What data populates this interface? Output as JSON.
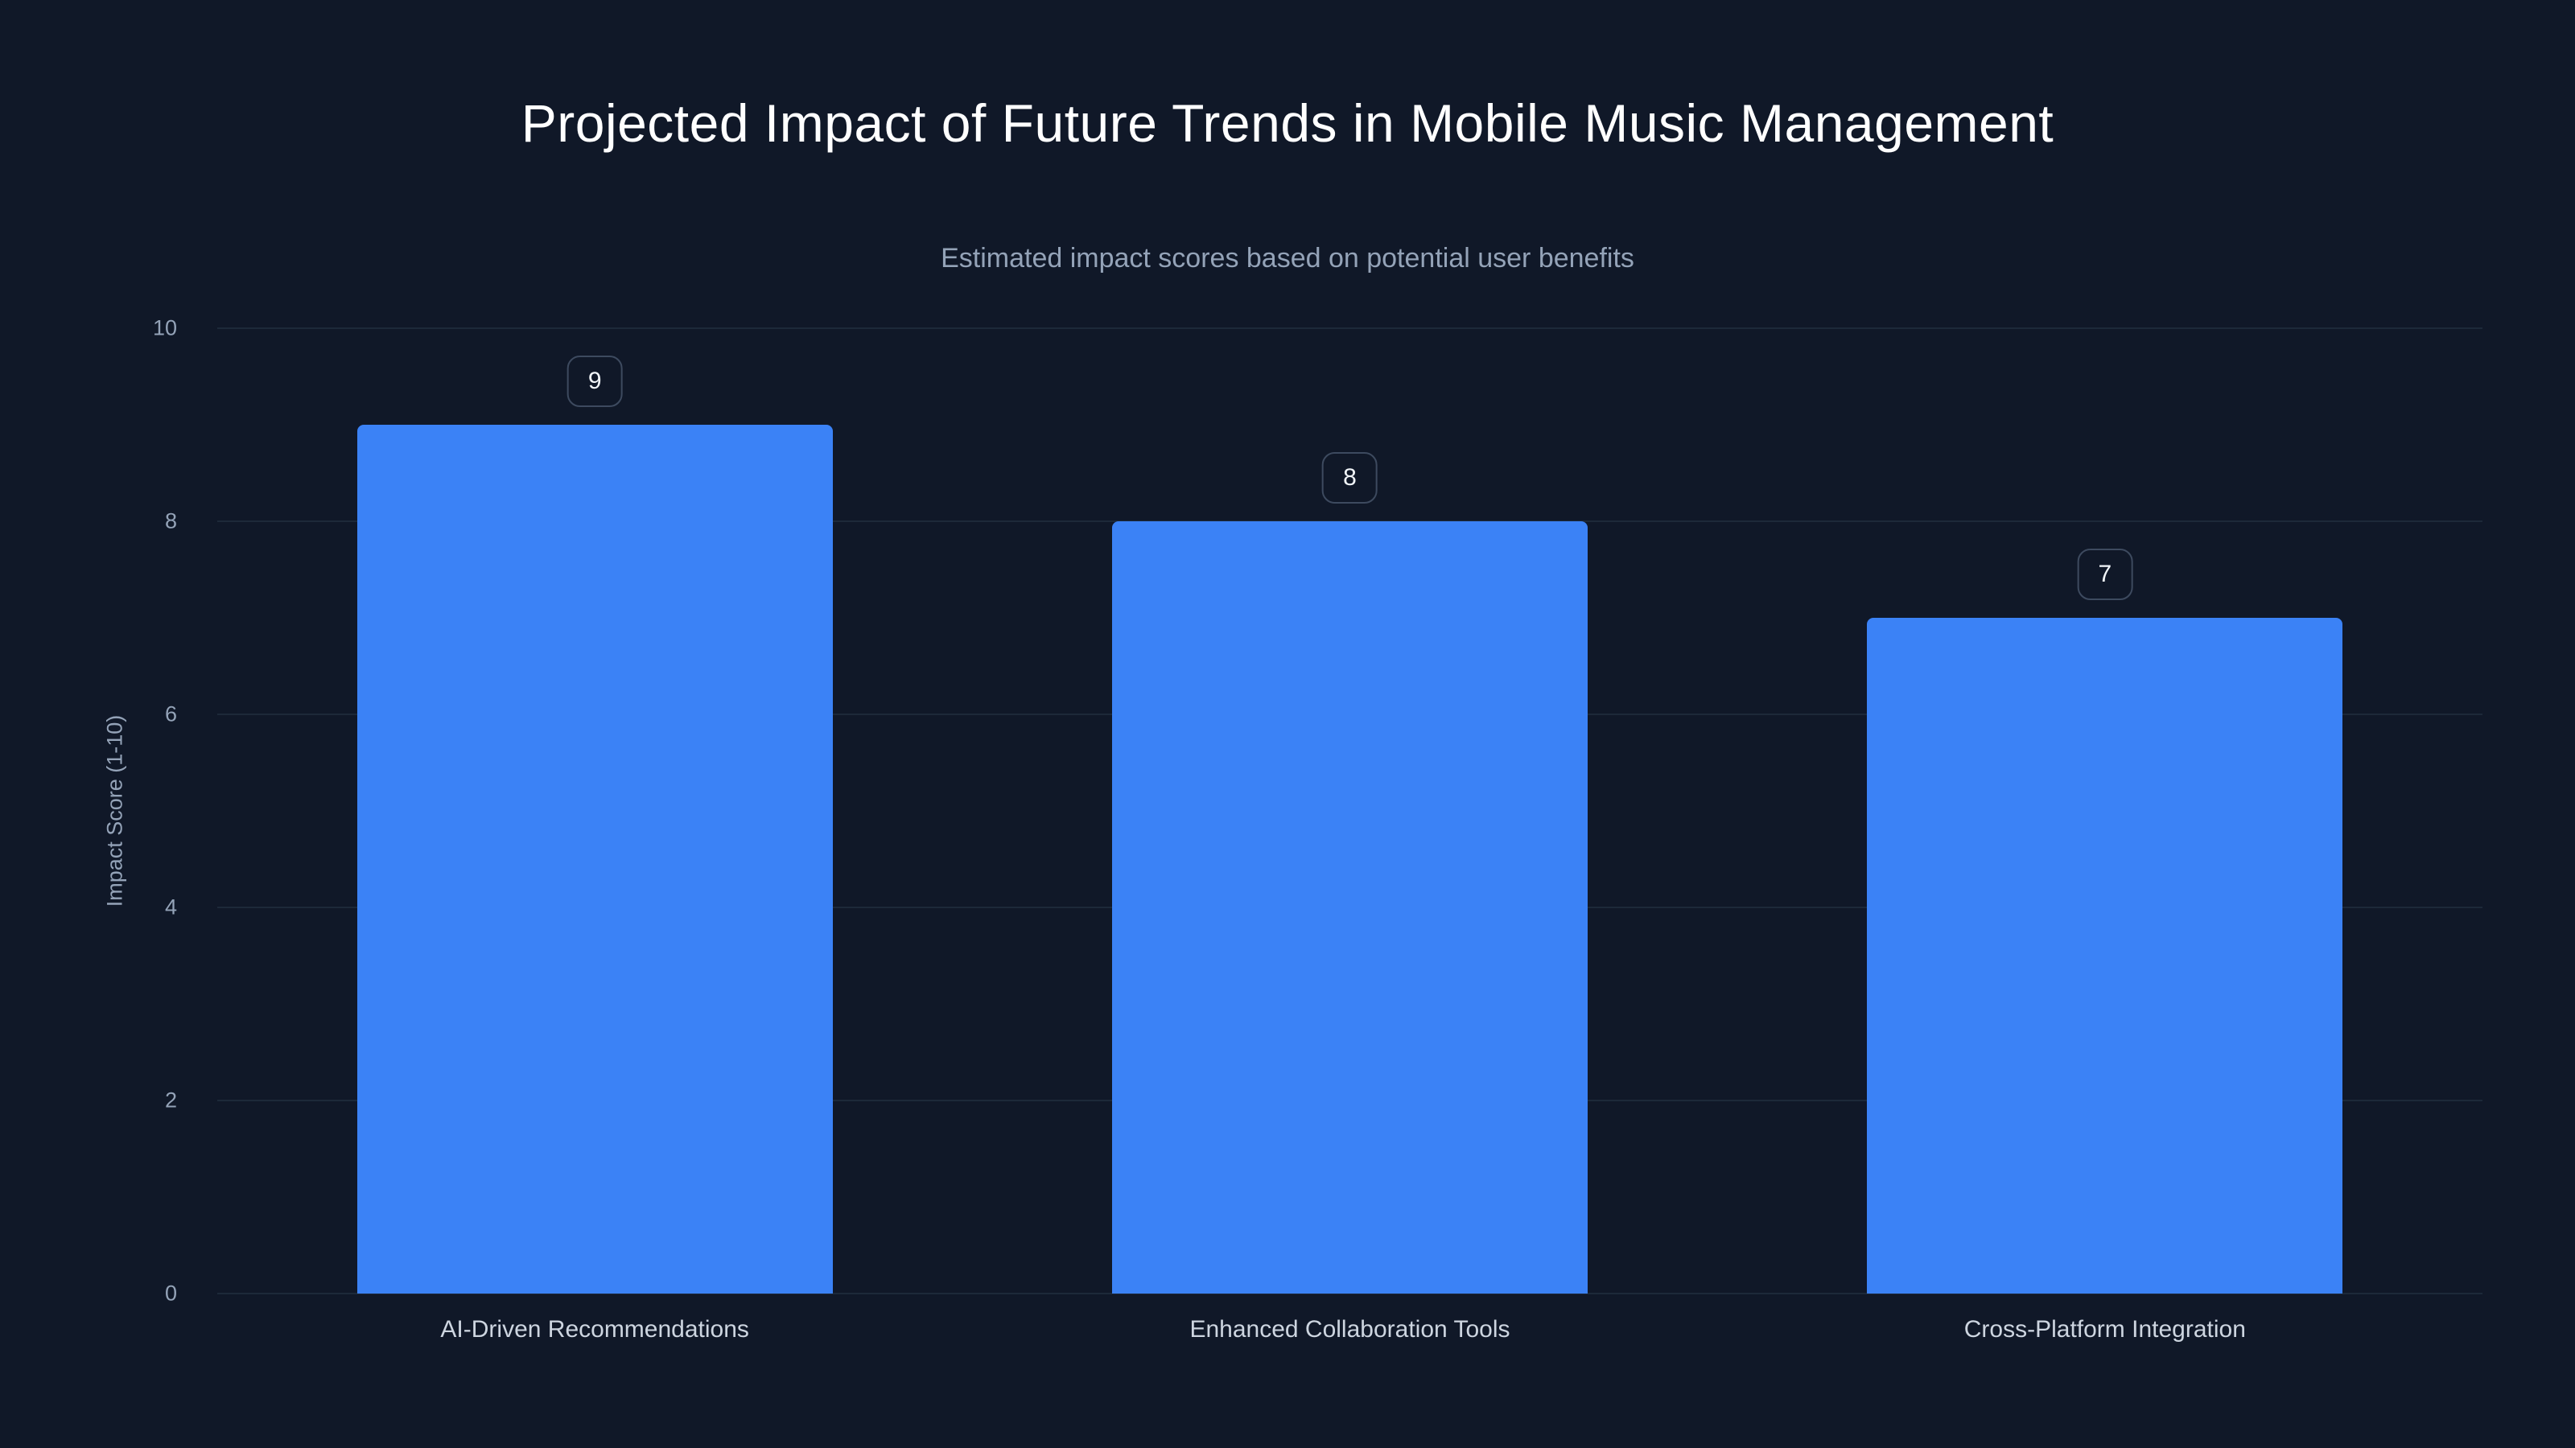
{
  "chart_data": {
    "type": "bar",
    "title": "Projected Impact of Future Trends in Mobile Music Management",
    "subtitle": "Estimated impact scores based on potential user benefits",
    "categories": [
      "AI-Driven Recommendations",
      "Enhanced Collaboration Tools",
      "Cross-Platform Integration"
    ],
    "values": [
      9,
      8,
      7
    ],
    "data_labels": [
      "9",
      "8",
      "7"
    ],
    "xlabel": "",
    "ylabel": "Impact Score (1-10)",
    "ylim": [
      0,
      10
    ],
    "yticks": [
      0,
      2,
      4,
      6,
      8,
      10
    ],
    "grid": true,
    "legend": false,
    "colors": {
      "background": "#101828",
      "bar": "#3b82f6",
      "gridline": "#1d2939",
      "title_text": "#ffffff",
      "subtitle_text": "#94a3b8",
      "tick_text": "#94a3b8",
      "category_text": "#cdd5e0",
      "badge_border": "#3d4a5f",
      "badge_text": "#f1f5f9"
    }
  }
}
